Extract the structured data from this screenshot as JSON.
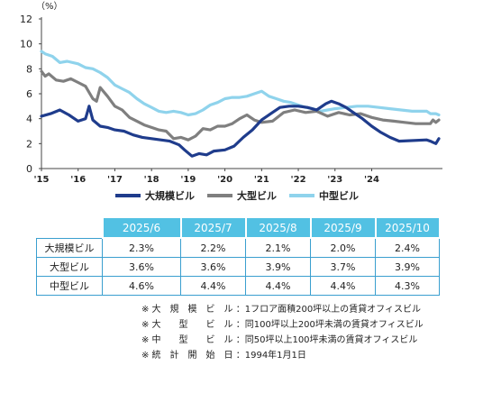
{
  "chart_data": {
    "type": "line",
    "y_unit_label": "（%）",
    "ylim": [
      0,
      12
    ],
    "y_ticks": [
      0,
      2,
      4,
      6,
      8,
      10,
      12
    ],
    "x_ticks": [
      "'15",
      "'16",
      "'17",
      "'18",
      "'19",
      "'20",
      "'21",
      "'22",
      "'23",
      "'24"
    ],
    "x_range": [
      2015.0,
      2025.83
    ],
    "grid": false,
    "legend_position": "bottom",
    "series": [
      {
        "name": "大規模ビル",
        "color": "#1f3c8c",
        "points": [
          [
            2015.0,
            4.2
          ],
          [
            2015.25,
            4.4
          ],
          [
            2015.5,
            4.7
          ],
          [
            2015.75,
            4.3
          ],
          [
            2016.0,
            3.8
          ],
          [
            2016.2,
            4.0
          ],
          [
            2016.3,
            5.0
          ],
          [
            2016.4,
            3.9
          ],
          [
            2016.6,
            3.4
          ],
          [
            2016.8,
            3.3
          ],
          [
            2017.0,
            3.1
          ],
          [
            2017.25,
            3.0
          ],
          [
            2017.5,
            2.7
          ],
          [
            2017.75,
            2.5
          ],
          [
            2018.0,
            2.4
          ],
          [
            2018.25,
            2.3
          ],
          [
            2018.5,
            2.2
          ],
          [
            2018.75,
            1.9
          ],
          [
            2018.9,
            1.5
          ],
          [
            2019.1,
            1.0
          ],
          [
            2019.3,
            1.2
          ],
          [
            2019.5,
            1.1
          ],
          [
            2019.7,
            1.4
          ],
          [
            2020.0,
            1.5
          ],
          [
            2020.25,
            1.8
          ],
          [
            2020.5,
            2.5
          ],
          [
            2020.75,
            3.1
          ],
          [
            2021.0,
            3.9
          ],
          [
            2021.25,
            4.4
          ],
          [
            2021.5,
            4.9
          ],
          [
            2021.75,
            5.0
          ],
          [
            2022.0,
            5.0
          ],
          [
            2022.25,
            4.9
          ],
          [
            2022.5,
            4.7
          ],
          [
            2022.75,
            5.2
          ],
          [
            2022.9,
            5.4
          ],
          [
            2023.1,
            5.2
          ],
          [
            2023.3,
            4.9
          ],
          [
            2023.5,
            4.5
          ],
          [
            2023.75,
            4.0
          ],
          [
            2024.0,
            3.4
          ],
          [
            2024.25,
            2.9
          ],
          [
            2024.5,
            2.5
          ],
          [
            2024.75,
            2.2
          ],
          [
            2025.5,
            2.3
          ],
          [
            2025.6,
            2.2
          ],
          [
            2025.67,
            2.1
          ],
          [
            2025.75,
            2.0
          ],
          [
            2025.83,
            2.4
          ]
        ]
      },
      {
        "name": "大型ビル",
        "color": "#7f7f7f",
        "points": [
          [
            2015.0,
            7.8
          ],
          [
            2015.1,
            7.4
          ],
          [
            2015.2,
            7.6
          ],
          [
            2015.4,
            7.1
          ],
          [
            2015.6,
            7.0
          ],
          [
            2015.8,
            7.2
          ],
          [
            2016.0,
            6.9
          ],
          [
            2016.2,
            6.6
          ],
          [
            2016.4,
            5.6
          ],
          [
            2016.5,
            5.4
          ],
          [
            2016.6,
            6.5
          ],
          [
            2016.8,
            5.8
          ],
          [
            2017.0,
            5.0
          ],
          [
            2017.2,
            4.7
          ],
          [
            2017.4,
            4.1
          ],
          [
            2017.6,
            3.8
          ],
          [
            2017.8,
            3.5
          ],
          [
            2018.0,
            3.3
          ],
          [
            2018.2,
            3.1
          ],
          [
            2018.4,
            3.0
          ],
          [
            2018.6,
            2.4
          ],
          [
            2018.8,
            2.5
          ],
          [
            2019.0,
            2.3
          ],
          [
            2019.2,
            2.6
          ],
          [
            2019.4,
            3.2
          ],
          [
            2019.6,
            3.1
          ],
          [
            2019.8,
            3.4
          ],
          [
            2020.0,
            3.4
          ],
          [
            2020.2,
            3.6
          ],
          [
            2020.4,
            4.0
          ],
          [
            2020.6,
            4.3
          ],
          [
            2020.8,
            3.9
          ],
          [
            2021.0,
            3.7
          ],
          [
            2021.3,
            3.8
          ],
          [
            2021.6,
            4.5
          ],
          [
            2021.9,
            4.7
          ],
          [
            2022.2,
            4.5
          ],
          [
            2022.5,
            4.6
          ],
          [
            2022.8,
            4.2
          ],
          [
            2023.1,
            4.5
          ],
          [
            2023.4,
            4.3
          ],
          [
            2023.7,
            4.4
          ],
          [
            2024.0,
            4.1
          ],
          [
            2024.3,
            3.9
          ],
          [
            2024.6,
            3.8
          ],
          [
            2024.9,
            3.7
          ],
          [
            2025.2,
            3.6
          ],
          [
            2025.5,
            3.6
          ],
          [
            2025.6,
            3.6
          ],
          [
            2025.67,
            3.9
          ],
          [
            2025.75,
            3.7
          ],
          [
            2025.83,
            3.9
          ]
        ]
      },
      {
        "name": "中型ビル",
        "color": "#8fd3ec",
        "points": [
          [
            2015.0,
            9.4
          ],
          [
            2015.1,
            9.2
          ],
          [
            2015.3,
            9.0
          ],
          [
            2015.5,
            8.5
          ],
          [
            2015.7,
            8.6
          ],
          [
            2016.0,
            8.4
          ],
          [
            2016.2,
            8.1
          ],
          [
            2016.4,
            8.0
          ],
          [
            2016.6,
            7.7
          ],
          [
            2016.8,
            7.3
          ],
          [
            2017.0,
            6.7
          ],
          [
            2017.2,
            6.4
          ],
          [
            2017.4,
            6.1
          ],
          [
            2017.6,
            5.6
          ],
          [
            2017.8,
            5.2
          ],
          [
            2018.0,
            4.9
          ],
          [
            2018.2,
            4.6
          ],
          [
            2018.4,
            4.5
          ],
          [
            2018.6,
            4.6
          ],
          [
            2018.8,
            4.5
          ],
          [
            2019.0,
            4.3
          ],
          [
            2019.2,
            4.4
          ],
          [
            2019.4,
            4.7
          ],
          [
            2019.6,
            5.1
          ],
          [
            2019.8,
            5.3
          ],
          [
            2020.0,
            5.6
          ],
          [
            2020.2,
            5.7
          ],
          [
            2020.4,
            5.7
          ],
          [
            2020.6,
            5.8
          ],
          [
            2020.8,
            6.0
          ],
          [
            2021.0,
            6.2
          ],
          [
            2021.2,
            5.8
          ],
          [
            2021.4,
            5.6
          ],
          [
            2021.6,
            5.4
          ],
          [
            2021.8,
            5.3
          ],
          [
            2022.0,
            5.1
          ],
          [
            2022.2,
            4.9
          ],
          [
            2022.4,
            4.8
          ],
          [
            2022.6,
            4.6
          ],
          [
            2022.8,
            4.7
          ],
          [
            2023.0,
            4.8
          ],
          [
            2023.3,
            4.9
          ],
          [
            2023.6,
            5.0
          ],
          [
            2023.9,
            5.0
          ],
          [
            2024.2,
            4.9
          ],
          [
            2024.5,
            4.8
          ],
          [
            2024.8,
            4.7
          ],
          [
            2025.1,
            4.6
          ],
          [
            2025.4,
            4.6
          ],
          [
            2025.5,
            4.6
          ],
          [
            2025.6,
            4.4
          ],
          [
            2025.67,
            4.4
          ],
          [
            2025.75,
            4.4
          ],
          [
            2025.83,
            4.3
          ]
        ]
      }
    ]
  },
  "table": {
    "columns": [
      "2025/6",
      "2025/7",
      "2025/8",
      "2025/9",
      "2025/10"
    ],
    "rows": [
      {
        "label": "大規模ビル",
        "values": [
          "2.3%",
          "2.2%",
          "2.1%",
          "2.0%",
          "2.4%"
        ]
      },
      {
        "label": "大型ビル",
        "values": [
          "3.6%",
          "3.6%",
          "3.9%",
          "3.7%",
          "3.9%"
        ]
      },
      {
        "label": "中型ビル",
        "values": [
          "4.6%",
          "4.4%",
          "4.4%",
          "4.4%",
          "4.3%"
        ]
      }
    ]
  },
  "notes": [
    "※ 大　規　模　ビ　ル ：1フロア面積200坪以上の賃貸オフィスビル",
    "※ 大　　型　　ビ　ル ：同100坪以上200坪未満の賃貸オフィスビル",
    "※ 中　　型　　ビ　ル ：同50坪以上100坪未満の賃貸オフィスビル",
    "※ 統　計　開　始　日 ：1994年1月1日"
  ]
}
